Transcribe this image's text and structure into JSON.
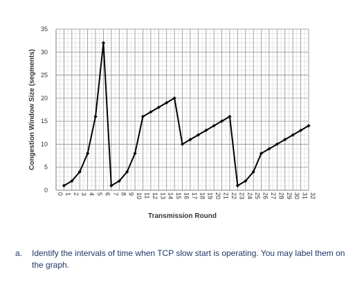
{
  "chart_data": {
    "type": "line",
    "title": "",
    "xlabel": "Transmission Round",
    "ylabel": "Congestion Window Size (segments)",
    "xlim": [
      0,
      32
    ],
    "ylim": [
      0,
      35
    ],
    "x_ticks": [
      0,
      1,
      2,
      3,
      4,
      5,
      6,
      7,
      8,
      9,
      10,
      11,
      12,
      13,
      14,
      15,
      16,
      17,
      18,
      19,
      20,
      21,
      22,
      23,
      24,
      25,
      26,
      27,
      28,
      29,
      30,
      31,
      32
    ],
    "y_ticks": [
      0,
      5,
      10,
      15,
      20,
      25,
      30,
      35
    ],
    "grid": true,
    "legend": "none",
    "series": [
      {
        "color": "#000000",
        "x": [
          1,
          2,
          3,
          4,
          5,
          6,
          7,
          8,
          9,
          10,
          11,
          12,
          13,
          14,
          15,
          16,
          17,
          18,
          19,
          20,
          21,
          22,
          23,
          24,
          25,
          26,
          27,
          28,
          29,
          30,
          31,
          32
        ],
        "y": [
          1,
          2,
          4,
          8,
          16,
          32,
          1,
          2,
          4,
          8,
          16,
          17,
          18,
          19,
          20,
          10,
          11,
          12,
          13,
          14,
          15,
          16,
          1,
          2,
          4,
          8,
          9,
          10,
          11,
          12,
          13,
          14
        ]
      }
    ]
  },
  "question": {
    "label": "a.",
    "line1": "Identify the intervals of time when TCP slow start is operating. You may label them on",
    "line2": "the graph."
  }
}
